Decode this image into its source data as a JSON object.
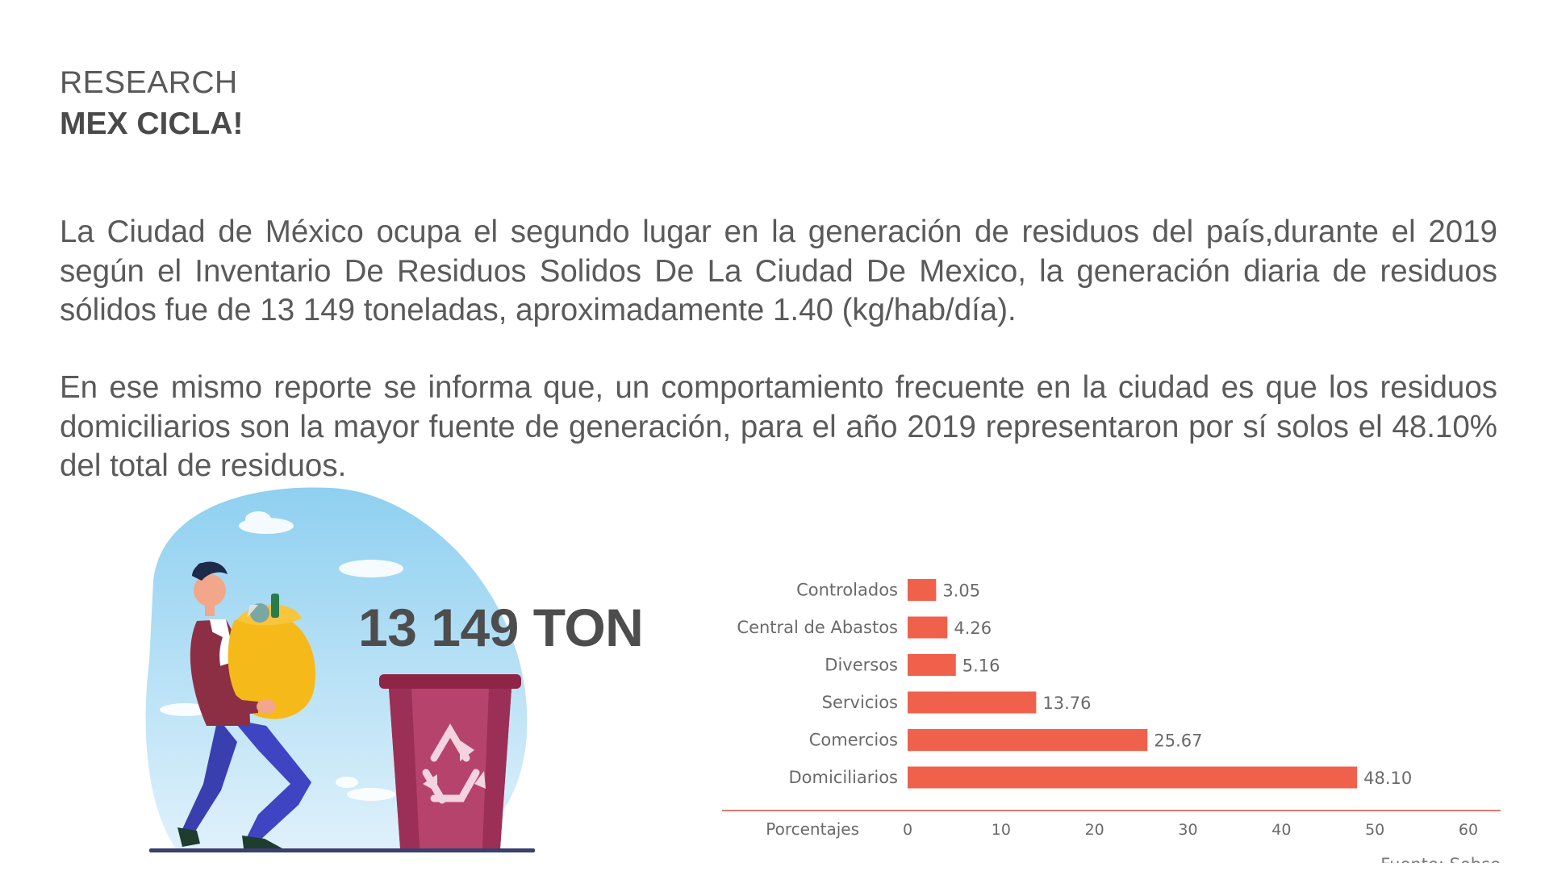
{
  "header": {
    "eyebrow": "RESEARCH",
    "title": "MEX CICLA!"
  },
  "content": {
    "paragraph_1": "La Ciudad de México ocupa el segundo lugar en la generación de residuos del país,durante el 2019 según el Inventario De Residuos Solidos De La Ciudad De Mexico, la generación diaria de residuos sólidos fue de 13 149 toneladas, aproximadamente 1.40 (kg/hab/día).",
    "paragraph_2": "En ese mismo reporte se informa que, un comportamiento frecuente en la ciudad es que los residuos domiciliarios son la mayor fuente de generación, para el año 2019 representaron por sí solos el 48.10% del total de residuos."
  },
  "highlight": {
    "figure": "13 149 TON"
  },
  "illustration": {
    "icon": "person-carrying-trash-bag-to-recycling-bin",
    "bin_icon": "recycle-icon"
  },
  "chart_data": {
    "type": "bar",
    "orientation": "horizontal",
    "categories": [
      "Controlados",
      "Central de Abastos",
      "Diversos",
      "Servicios",
      "Comercios",
      "Domiciliarios"
    ],
    "values": [
      3.05,
      4.26,
      5.16,
      13.76,
      25.67,
      48.1
    ],
    "value_labels": [
      "3.05",
      "4.26",
      "5.16",
      "13.76",
      "25.67",
      "48.10"
    ],
    "xlabel": "Porcentajes",
    "xticks": [
      "0",
      "10",
      "20",
      "30",
      "40",
      "50",
      "60"
    ],
    "xlim": [
      0,
      60
    ],
    "source": "Fuente: Sobse",
    "grid": false,
    "colors": {
      "bar": "#ef614b",
      "axis": "#e07a6c",
      "text": "#6a6a6a"
    }
  }
}
